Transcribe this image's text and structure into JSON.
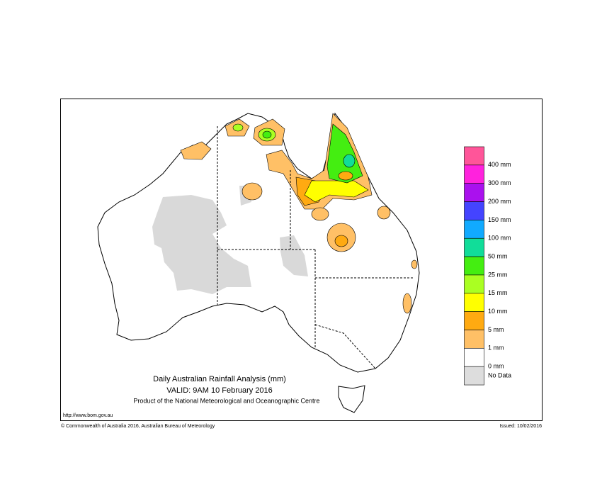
{
  "map": {
    "title": "Daily Australian Rainfall Analysis (mm)",
    "valid": "VALID: 9AM 10 February 2016",
    "product": "Product of the National Meteorological and Oceanographic Centre",
    "url": "http://www.bom.gov.au",
    "copyright": "© Commonwealth of Australia 2016, Australian Bureau of Meteorology",
    "issued": "Issued: 10/02/2016",
    "legend": {
      "colors": [
        "#ff5599",
        "#ff22dd",
        "#aa11ee",
        "#4444ff",
        "#11aaff",
        "#11dd99",
        "#44ee11",
        "#aaff22",
        "#ffff00",
        "#ffaa11",
        "#ffc066",
        "#ffffff",
        "#dddddd"
      ],
      "labels": [
        "400 mm",
        "300 mm",
        "200 mm",
        "150 mm",
        "100 mm",
        "50 mm",
        "25 mm",
        "15 mm",
        "10 mm",
        "5 mm",
        "1 mm",
        "0 mm",
        "No Data"
      ]
    }
  }
}
